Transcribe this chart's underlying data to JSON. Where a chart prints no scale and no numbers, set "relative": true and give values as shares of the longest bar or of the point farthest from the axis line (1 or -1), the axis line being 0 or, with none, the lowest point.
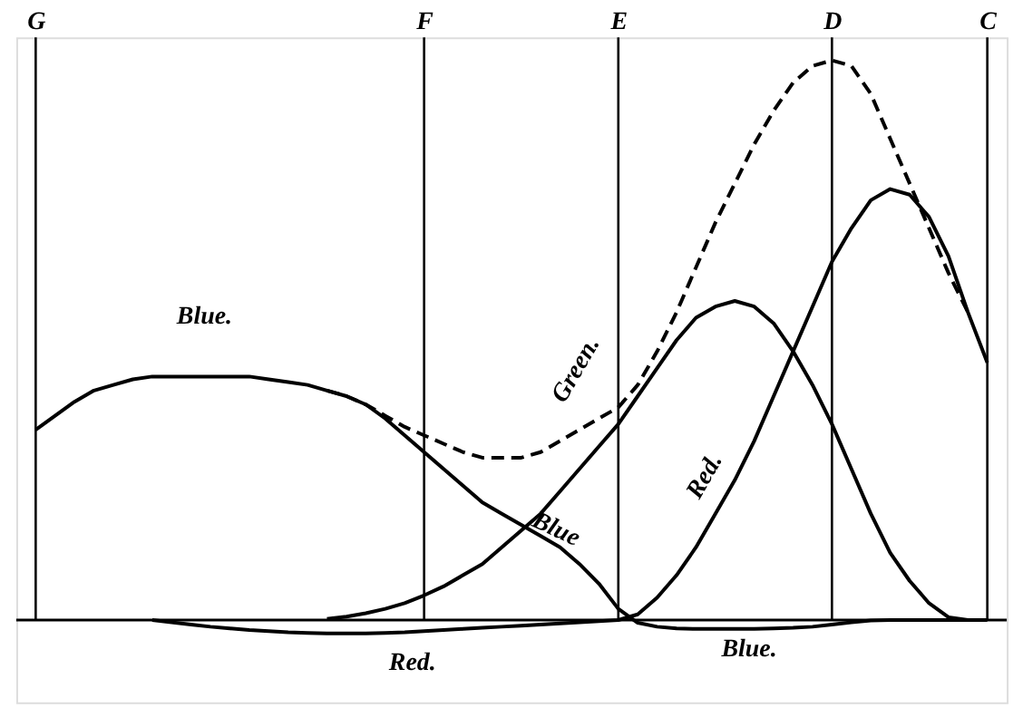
{
  "chart_data": {
    "type": "line",
    "relative": true,
    "grid": false,
    "legend": false,
    "marker": "none",
    "categories": [
      "G",
      null,
      null,
      null,
      null,
      null,
      null,
      null,
      null,
      null,
      null,
      null,
      null,
      null,
      null,
      null,
      null,
      null,
      null,
      null,
      "F",
      null,
      null,
      null,
      null,
      null,
      null,
      null,
      null,
      null,
      "E",
      null,
      null,
      null,
      null,
      null,
      null,
      null,
      null,
      null,
      null,
      "D",
      null,
      null,
      null,
      null,
      null,
      null,
      null,
      "C"
    ],
    "series": [
      {
        "color": "#000000",
        "line_style": "solid",
        "values": [
          0.34,
          0.365,
          0.39,
          0.41,
          0.42,
          0.43,
          0.435,
          0.435,
          0.435,
          0.435,
          0.435,
          0.435,
          0.43,
          0.425,
          0.42,
          0.41,
          0.4,
          0.385,
          0.36,
          0.33,
          0.3,
          0.27,
          0.24,
          0.21,
          0.19,
          0.17,
          0.15,
          0.13,
          0.1,
          0.065,
          0.02,
          -0.005,
          -0.012,
          -0.015,
          -0.016,
          -0.016,
          -0.016,
          -0.016,
          -0.015,
          -0.014,
          -0.012,
          -0.008,
          -0.004,
          -0.001,
          0,
          0,
          0,
          0,
          0,
          0
        ]
      },
      {
        "color": "#000000",
        "line_style": "solid",
        "values": [
          null,
          null,
          null,
          null,
          null,
          null,
          null,
          null,
          null,
          null,
          null,
          null,
          null,
          null,
          null,
          0.002,
          0.006,
          0.012,
          0.02,
          0.03,
          0.044,
          0.06,
          0.08,
          0.1,
          0.13,
          0.16,
          0.19,
          0.23,
          0.27,
          0.31,
          0.35,
          0.4,
          0.45,
          0.5,
          0.54,
          0.56,
          0.57,
          0.56,
          0.53,
          0.48,
          0.42,
          0.35,
          0.27,
          0.19,
          0.12,
          0.07,
          0.03,
          0.005,
          0,
          null
        ]
      },
      {
        "color": "#000000",
        "line_style": "solid",
        "values": [
          null,
          null,
          null,
          null,
          null,
          null,
          0,
          -0.004,
          -0.008,
          -0.012,
          -0.015,
          -0.018,
          -0.02,
          -0.022,
          -0.023,
          -0.024,
          -0.024,
          -0.024,
          -0.023,
          -0.022,
          -0.02,
          -0.018,
          -0.016,
          -0.014,
          -0.012,
          -0.01,
          -0.008,
          -0.006,
          -0.004,
          -0.002,
          0,
          0.01,
          0.04,
          0.08,
          0.13,
          0.19,
          0.25,
          0.32,
          0.4,
          0.48,
          0.56,
          0.64,
          0.7,
          0.75,
          0.77,
          0.76,
          0.72,
          0.65,
          0.55,
          0.46
        ]
      },
      {
        "color": "#000000",
        "line_style": "dashed",
        "values": [
          null,
          null,
          null,
          null,
          null,
          null,
          null,
          null,
          null,
          null,
          null,
          null,
          null,
          null,
          null,
          0.41,
          0.4,
          0.385,
          0.365,
          0.345,
          0.33,
          0.315,
          0.3,
          0.29,
          0.29,
          0.29,
          0.3,
          0.32,
          0.34,
          0.36,
          0.38,
          0.42,
          0.48,
          0.55,
          0.63,
          0.71,
          0.78,
          0.85,
          0.91,
          0.96,
          0.99,
          1.0,
          0.99,
          0.94,
          0.86,
          0.78,
          0.7,
          0.62,
          0.55,
          null
        ]
      }
    ],
    "ref_lines": [
      {
        "axis": "x",
        "value": "G"
      },
      {
        "axis": "x",
        "value": "F"
      },
      {
        "axis": "x",
        "value": "E"
      },
      {
        "axis": "x",
        "value": "D"
      },
      {
        "axis": "x",
        "value": "C"
      }
    ],
    "annotations": [
      "Blue.",
      "Green.",
      "Red.",
      "Blue",
      "Red.",
      "Blue."
    ]
  }
}
